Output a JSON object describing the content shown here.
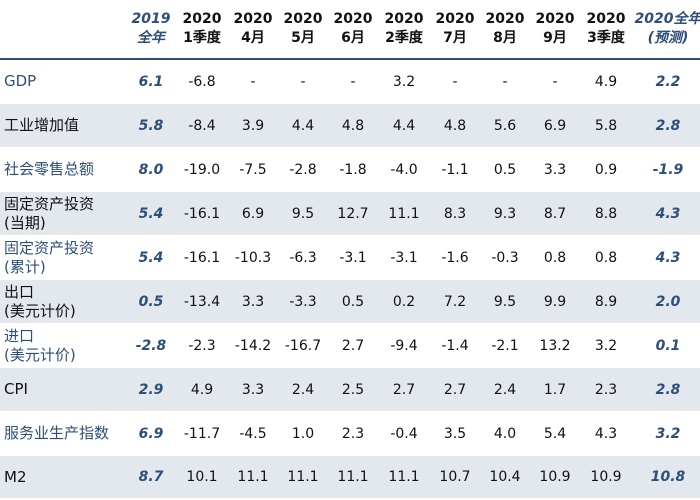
{
  "header": [
    {
      "l1": "",
      "l2": "",
      "hl": false
    },
    {
      "l1": "2019",
      "l2": "全年",
      "hl": true
    },
    {
      "l1": "2020",
      "l2": "1季度",
      "hl": false
    },
    {
      "l1": "2020",
      "l2": "4月",
      "hl": false
    },
    {
      "l1": "2020",
      "l2": "5月",
      "hl": false
    },
    {
      "l1": "2020",
      "l2": "6月",
      "hl": false
    },
    {
      "l1": "2020",
      "l2": "2季度",
      "hl": false
    },
    {
      "l1": "2020",
      "l2": "7月",
      "hl": false
    },
    {
      "l1": "2020",
      "l2": "8月",
      "hl": false
    },
    {
      "l1": "2020",
      "l2": "9月",
      "hl": false
    },
    {
      "l1": "2020",
      "l2": "3季度",
      "hl": false
    },
    {
      "l1": "2020全年",
      "l2": "(预测)",
      "hl": true
    }
  ],
  "rows": [
    {
      "label": "GDP",
      "sub": "",
      "blue": true,
      "shade": false,
      "cells": [
        "6.1",
        "-6.8",
        "-",
        "-",
        "-",
        "3.2",
        "-",
        "-",
        "-",
        "4.9",
        "2.2"
      ]
    },
    {
      "label": "工业增加值",
      "sub": "",
      "blue": false,
      "shade": true,
      "cells": [
        "5.8",
        "-8.4",
        "3.9",
        "4.4",
        "4.8",
        "4.4",
        "4.8",
        "5.6",
        "6.9",
        "5.8",
        "2.8"
      ]
    },
    {
      "label": "社会零售总额",
      "sub": "",
      "blue": true,
      "shade": false,
      "cells": [
        "8.0",
        "-19.0",
        "-7.5",
        "-2.8",
        "-1.8",
        "-4.0",
        "-1.1",
        "0.5",
        "3.3",
        "0.9",
        "-1.9"
      ]
    },
    {
      "label": "固定资产投资",
      "sub": "(当期)",
      "blue": false,
      "shade": true,
      "cells": [
        "5.4",
        "-16.1",
        "6.9",
        "9.5",
        "12.7",
        "11.1",
        "8.3",
        "9.3",
        "8.7",
        "8.8",
        "4.3"
      ]
    },
    {
      "label": "固定资产投资",
      "sub": "(累计)",
      "blue": true,
      "shade": false,
      "cells": [
        "5.4",
        "-16.1",
        "-10.3",
        "-6.3",
        "-3.1",
        "-3.1",
        "-1.6",
        "-0.3",
        "0.8",
        "0.8",
        "4.3"
      ]
    },
    {
      "label": "出口",
      "sub": "(美元计价)",
      "blue": false,
      "shade": true,
      "cells": [
        "0.5",
        "-13.4",
        "3.3",
        "-3.3",
        "0.5",
        "0.2",
        "7.2",
        "9.5",
        "9.9",
        "8.9",
        "2.0"
      ]
    },
    {
      "label": "进口",
      "sub": "(美元计价)",
      "blue": true,
      "shade": false,
      "cells": [
        "-2.8",
        "-2.3",
        "-14.2",
        "-16.7",
        "2.7",
        "-9.4",
        "-1.4",
        "-2.1",
        "13.2",
        "3.2",
        "0.1"
      ]
    },
    {
      "label": "CPI",
      "sub": "",
      "blue": false,
      "shade": true,
      "cells": [
        "2.9",
        "4.9",
        "3.3",
        "2.4",
        "2.5",
        "2.7",
        "2.7",
        "2.4",
        "1.7",
        "2.3",
        "2.8"
      ]
    },
    {
      "label": "服务业生产指数",
      "sub": "",
      "blue": true,
      "shade": false,
      "cells": [
        "6.9",
        "-11.7",
        "-4.5",
        "1.0",
        "2.3",
        "-0.4",
        "3.5",
        "4.0",
        "5.4",
        "4.3",
        "3.2"
      ]
    },
    {
      "label": "M2",
      "sub": "",
      "blue": false,
      "shade": true,
      "cells": [
        "8.7",
        "10.1",
        "11.1",
        "11.1",
        "11.1",
        "11.1",
        "10.7",
        "10.4",
        "10.9",
        "10.9",
        "10.8"
      ]
    }
  ]
}
